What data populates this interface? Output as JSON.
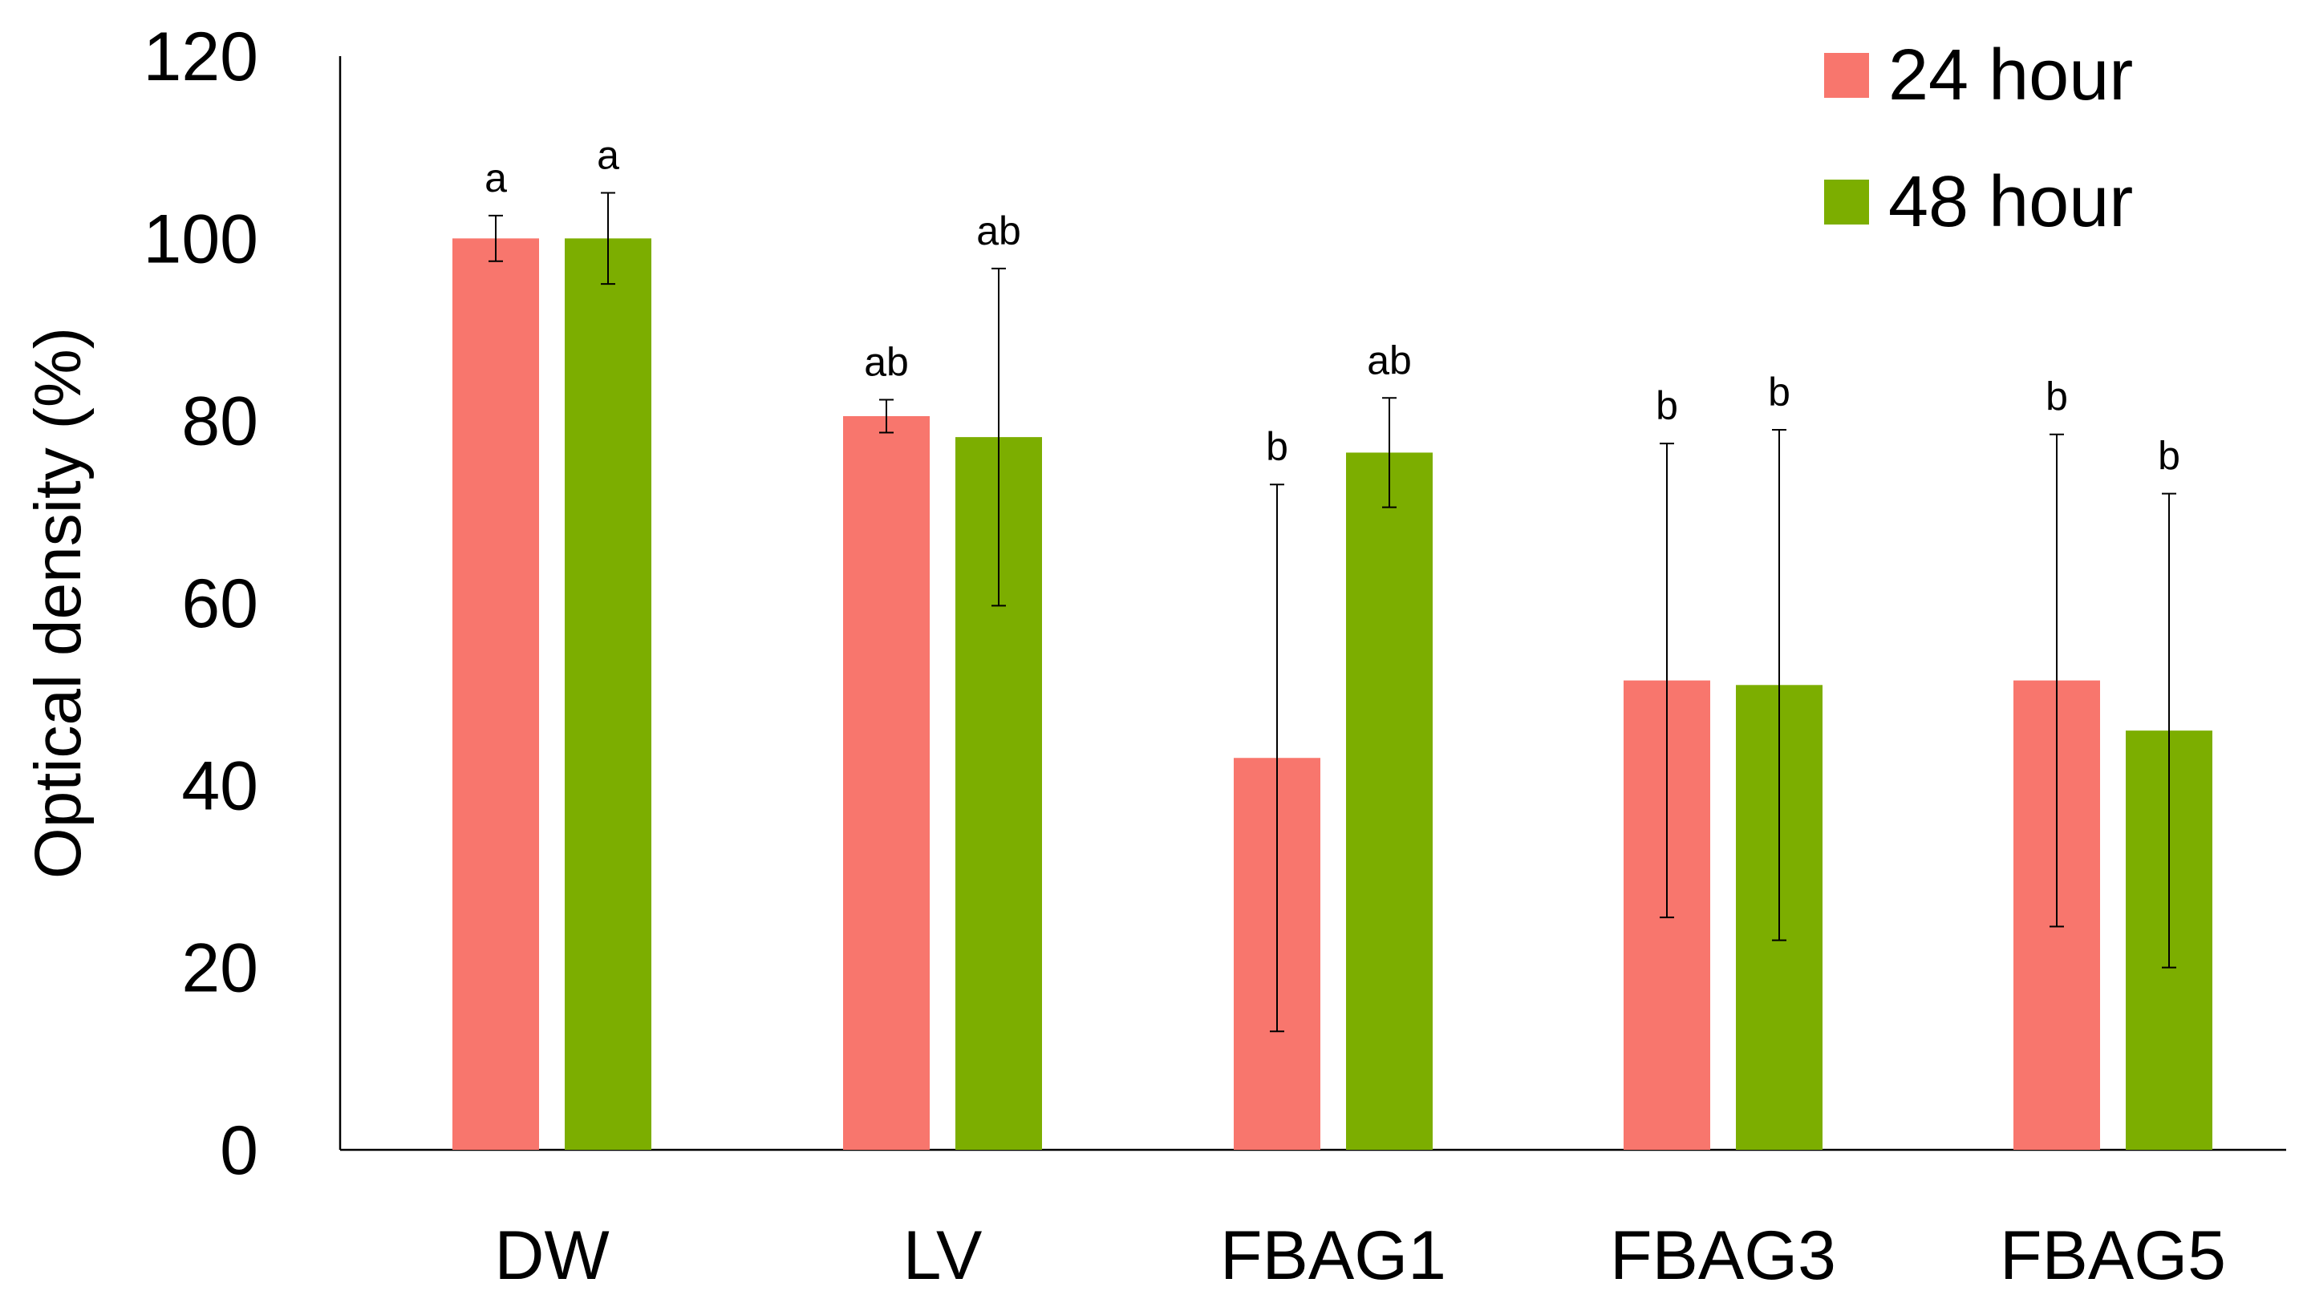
{
  "chart_data": {
    "type": "bar",
    "title": "",
    "xlabel": "",
    "ylabel": "Optical density  (%)",
    "ylim": [
      0,
      120
    ],
    "yticks": [
      0,
      20,
      40,
      60,
      80,
      100,
      120
    ],
    "ytick_labels": [
      "0",
      "20",
      "40",
      "60",
      "80",
      "100",
      "120"
    ],
    "grid": false,
    "legend_position": "top-right",
    "categories": [
      "DW",
      "LV",
      "FBAG1",
      "FBAG3",
      "FBAG5"
    ],
    "series": [
      {
        "name": "24 hour",
        "color": "#F8766D",
        "values": [
          100,
          80.5,
          43,
          51.5,
          51.5
        ],
        "errors": [
          2.5,
          1.8,
          30,
          26,
          27
        ],
        "letters": [
          "a",
          "ab",
          "b",
          "b",
          "b"
        ]
      },
      {
        "name": "48 hour",
        "color": "#7CAE00",
        "values": [
          100,
          78.2,
          76.5,
          51,
          46
        ],
        "errors": [
          5,
          18.5,
          6,
          28,
          26
        ],
        "letters": [
          "a",
          "ab",
          "ab",
          "b",
          "b"
        ]
      }
    ]
  }
}
